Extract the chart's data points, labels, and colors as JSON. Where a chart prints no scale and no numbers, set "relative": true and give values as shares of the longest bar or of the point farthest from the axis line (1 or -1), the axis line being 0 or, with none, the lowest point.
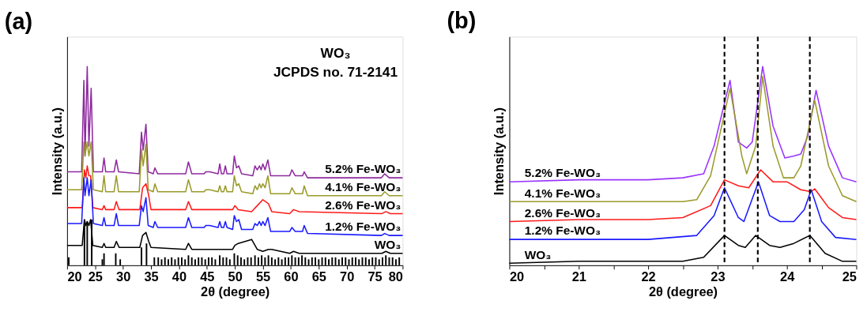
{
  "chart_data": [
    {
      "type": "line",
      "title": "(a)",
      "xlabel": "2θ (degree)",
      "ylabel": "Intensity (a.u.)",
      "relative": true,
      "xlim": [
        20,
        80
      ],
      "xticks": [
        20,
        25,
        30,
        35,
        40,
        45,
        50,
        55,
        60,
        65,
        70,
        75,
        80
      ],
      "tick_labels": "x",
      "grid": false,
      "legend": false,
      "marker": "none",
      "line_style": "solid",
      "annotations": [
        "WO₃",
        "JCPDS no. 71-2141"
      ],
      "series": [
        {
          "name": "5.2% Fe-WO₃",
          "color": "#8e2a9e",
          "x": [
            20,
            22.6,
            23.0,
            23.2,
            23.6,
            23.9,
            24.3,
            24.7,
            26.3,
            26.6,
            26.9,
            28.4,
            28.8,
            29.2,
            32.9,
            33.3,
            33.6,
            34.1,
            34.5,
            35.4,
            35.7,
            36.2,
            41.2,
            41.7,
            42.3,
            44.5,
            44.8,
            45.5,
            47.0,
            47.3,
            47.6,
            48.0,
            48.3,
            48.6,
            49.6,
            49.9,
            50.3,
            50.7,
            51.2,
            53.2,
            53.6,
            54.0,
            54.4,
            54.7,
            55.0,
            55.4,
            55.9,
            56.4,
            59.8,
            60.2,
            60.8,
            62.1,
            62.4,
            63.0,
            76.2,
            76.8,
            77.6,
            80
          ],
          "values": [
            0.47,
            0.47,
            0.93,
            0.55,
            1.0,
            0.6,
            0.89,
            0.47,
            0.47,
            0.54,
            0.47,
            0.47,
            0.53,
            0.47,
            0.46,
            0.67,
            0.58,
            0.71,
            0.47,
            0.46,
            0.49,
            0.46,
            0.46,
            0.52,
            0.46,
            0.46,
            0.47,
            0.47,
            0.46,
            0.51,
            0.46,
            0.46,
            0.5,
            0.46,
            0.46,
            0.55,
            0.49,
            0.5,
            0.46,
            0.45,
            0.5,
            0.48,
            0.5,
            0.48,
            0.51,
            0.48,
            0.53,
            0.45,
            0.45,
            0.48,
            0.45,
            0.45,
            0.47,
            0.44,
            0.44,
            0.46,
            0.44,
            0.44
          ]
        },
        {
          "name": "4.1% Fe-WO₃",
          "color": "#9a9a2a",
          "x": [
            20,
            22.6,
            23.0,
            23.2,
            23.6,
            23.9,
            24.3,
            24.7,
            26.3,
            26.6,
            26.9,
            28.4,
            28.8,
            29.2,
            32.9,
            33.3,
            33.6,
            34.1,
            34.5,
            35.4,
            35.7,
            36.2,
            41.2,
            41.7,
            42.3,
            44.5,
            44.8,
            45.5,
            47.0,
            47.3,
            47.6,
            48.0,
            48.3,
            48.6,
            49.6,
            49.9,
            50.3,
            50.7,
            51.2,
            53.2,
            53.6,
            54.0,
            54.4,
            54.7,
            55.0,
            55.4,
            55.9,
            56.4,
            59.8,
            60.2,
            60.8,
            62.1,
            62.4,
            63.0,
            76.2,
            76.8,
            77.6,
            80
          ],
          "values": [
            0.38,
            0.38,
            0.62,
            0.55,
            0.62,
            0.55,
            0.62,
            0.38,
            0.37,
            0.45,
            0.37,
            0.37,
            0.45,
            0.37,
            0.37,
            0.585,
            0.5,
            0.61,
            0.38,
            0.37,
            0.41,
            0.37,
            0.37,
            0.43,
            0.37,
            0.37,
            0.38,
            0.38,
            0.37,
            0.4,
            0.37,
            0.37,
            0.4,
            0.37,
            0.37,
            0.45,
            0.4,
            0.41,
            0.37,
            0.36,
            0.4,
            0.38,
            0.41,
            0.39,
            0.41,
            0.39,
            0.45,
            0.36,
            0.36,
            0.39,
            0.36,
            0.36,
            0.4,
            0.35,
            0.35,
            0.37,
            0.35,
            0.35
          ]
        },
        {
          "name": "2.6% Fe-WO₃",
          "color": "#ff1a1a",
          "x": [
            20,
            22.7,
            23.1,
            23.35,
            23.6,
            23.9,
            24.2,
            24.6,
            26.3,
            26.6,
            26.9,
            28.4,
            28.8,
            29.3,
            33.0,
            33.5,
            34.1,
            34.6,
            35.0,
            41.2,
            41.7,
            42.3,
            49.6,
            50.0,
            50.6,
            53.0,
            54.0,
            55.0,
            56.0,
            56.6,
            59.8,
            60.5,
            61.5,
            76.3,
            77.0,
            77.8,
            80
          ],
          "values": [
            0.29,
            0.29,
            0.48,
            0.44,
            0.5,
            0.45,
            0.45,
            0.29,
            0.28,
            0.3,
            0.28,
            0.28,
            0.32,
            0.28,
            0.28,
            0.39,
            0.41,
            0.35,
            0.28,
            0.28,
            0.32,
            0.28,
            0.28,
            0.3,
            0.28,
            0.27,
            0.3,
            0.33,
            0.31,
            0.27,
            0.26,
            0.28,
            0.27,
            0.26,
            0.27,
            0.26,
            0.26
          ]
        },
        {
          "name": "1.2% Fe-WO₃",
          "color": "#1a1aff",
          "x": [
            20,
            22.6,
            23.0,
            23.2,
            23.6,
            23.9,
            24.3,
            24.7,
            26.3,
            26.6,
            26.9,
            28.4,
            28.8,
            29.2,
            32.9,
            33.3,
            33.6,
            34.1,
            34.5,
            35.4,
            35.7,
            36.2,
            41.2,
            41.7,
            42.3,
            44.5,
            44.8,
            45.5,
            47.0,
            47.3,
            47.6,
            48.0,
            48.3,
            48.6,
            49.6,
            49.9,
            50.3,
            50.7,
            51.2,
            53.2,
            53.6,
            54.0,
            54.4,
            54.7,
            55.0,
            55.4,
            55.9,
            56.4,
            59.8,
            60.2,
            60.8,
            62.1,
            62.4,
            63.0,
            76.2,
            76.8,
            77.6,
            80
          ],
          "values": [
            0.21,
            0.21,
            0.44,
            0.35,
            0.44,
            0.35,
            0.43,
            0.21,
            0.2,
            0.24,
            0.2,
            0.2,
            0.26,
            0.2,
            0.2,
            0.3,
            0.27,
            0.34,
            0.2,
            0.19,
            0.22,
            0.19,
            0.19,
            0.24,
            0.19,
            0.19,
            0.2,
            0.2,
            0.19,
            0.22,
            0.19,
            0.19,
            0.22,
            0.19,
            0.18,
            0.25,
            0.22,
            0.23,
            0.18,
            0.18,
            0.21,
            0.2,
            0.22,
            0.2,
            0.22,
            0.2,
            0.24,
            0.17,
            0.17,
            0.19,
            0.17,
            0.17,
            0.2,
            0.16,
            0.15,
            0.16,
            0.15,
            0.15
          ]
        },
        {
          "name": "WO₃",
          "color": "#000000",
          "x": [
            20,
            22.7,
            23.1,
            23.35,
            23.6,
            23.9,
            24.2,
            24.6,
            26.3,
            26.6,
            26.9,
            28.4,
            28.8,
            29.3,
            33.0,
            33.5,
            34.1,
            34.6,
            35.0,
            41.2,
            41.7,
            42.3,
            49.6,
            50.0,
            50.6,
            53.0,
            54.0,
            55.0,
            56.0,
            56.6,
            59.8,
            60.5,
            61.5,
            76.3,
            77.0,
            77.8,
            80
          ],
          "values": [
            0.1,
            0.1,
            0.23,
            0.2,
            0.22,
            0.2,
            0.23,
            0.1,
            0.09,
            0.11,
            0.09,
            0.09,
            0.12,
            0.09,
            0.09,
            0.15,
            0.165,
            0.12,
            0.09,
            0.08,
            0.11,
            0.08,
            0.08,
            0.1,
            0.11,
            0.13,
            0.08,
            0.07,
            0.08,
            0.08,
            0.06,
            0.07,
            0.06,
            0.06,
            0.07,
            0.06,
            0.06
          ]
        },
        {
          "type": "bar",
          "color": "#000000",
          "x": [
            20.3,
            23.1,
            23.6,
            24.4,
            26.3,
            26.6,
            28.7,
            29.5,
            33.3,
            34.2,
            35.6,
            36.3,
            36.9,
            37.5,
            38.1,
            38.7,
            39.3,
            39.9,
            40.5,
            41.1,
            41.7,
            42.3,
            42.9,
            43.5,
            44.1,
            44.7,
            45.3,
            45.9,
            46.5,
            47.3,
            47.9,
            48.5,
            49.1,
            49.9,
            50.5,
            51.1,
            51.7,
            52.3,
            52.9,
            53.6,
            54.2,
            54.8,
            55.4,
            56.0,
            56.6,
            57.2,
            57.8,
            58.4,
            59.0,
            59.6,
            60.2,
            60.8,
            61.4,
            62.0,
            62.6,
            63.2,
            63.8,
            64.4,
            65.0,
            65.6,
            66.2,
            66.8,
            67.4,
            68.0,
            68.6,
            69.2,
            69.8,
            70.4,
            71.0,
            71.6,
            72.2,
            72.8,
            73.4,
            74.0,
            74.6,
            75.2,
            75.8,
            76.4,
            77.0,
            77.6,
            78.2,
            78.8,
            79.4
          ],
          "values": [
            0.04,
            0.23,
            0.22,
            0.23,
            0.03,
            0.06,
            0.06,
            0.03,
            0.09,
            0.11,
            0.04,
            0.04,
            0.03,
            0.04,
            0.03,
            0.04,
            0.03,
            0.04,
            0.04,
            0.03,
            0.05,
            0.04,
            0.03,
            0.04,
            0.04,
            0.03,
            0.04,
            0.04,
            0.03,
            0.05,
            0.04,
            0.04,
            0.03,
            0.06,
            0.05,
            0.04,
            0.03,
            0.04,
            0.04,
            0.05,
            0.04,
            0.05,
            0.04,
            0.05,
            0.04,
            0.03,
            0.04,
            0.03,
            0.04,
            0.04,
            0.05,
            0.04,
            0.04,
            0.05,
            0.04,
            0.03,
            0.04,
            0.04,
            0.03,
            0.04,
            0.04,
            0.03,
            0.04,
            0.04,
            0.03,
            0.04,
            0.04,
            0.03,
            0.04,
            0.04,
            0.03,
            0.04,
            0.04,
            0.03,
            0.04,
            0.04,
            0.03,
            0.04,
            0.05,
            0.04,
            0.04,
            0.03,
            0.04
          ]
        }
      ]
    },
    {
      "type": "line",
      "title": "(b)",
      "xlabel": "2θ (degree)",
      "ylabel": "Intensity (a.u.)",
      "relative": true,
      "xlim": [
        20,
        25
      ],
      "xticks": [
        20,
        {
          "value": 20.5,
          "label": null
        },
        21,
        {
          "value": 21.5,
          "label": null
        },
        22,
        {
          "value": 22.5,
          "label": null
        },
        23,
        {
          "value": 23.5,
          "label": null
        },
        24,
        {
          "value": 24.5,
          "label": null
        },
        25
      ],
      "tick_labels": "x",
      "grid": false,
      "legend": false,
      "marker": "none",
      "line_style": "solid",
      "ref_lines": [
        {
          "axis": "x",
          "value": 23.1,
          "color": "#000000",
          "line_style": "dashed"
        },
        {
          "axis": "x",
          "value": 23.58,
          "color": "#000000",
          "line_style": "dashed"
        },
        {
          "axis": "x",
          "value": 24.33,
          "color": "#000000",
          "line_style": "dashed"
        }
      ],
      "series": [
        {
          "name": "5.2% Fe-WO₃",
          "color": "#9933ff",
          "x": [
            20,
            21,
            22,
            22.5,
            22.8,
            22.95,
            23.18,
            23.3,
            23.42,
            23.5,
            23.65,
            23.8,
            23.97,
            24.1,
            24.2,
            24.3,
            24.42,
            24.6,
            24.8,
            25
          ],
          "values": [
            0.42,
            0.43,
            0.43,
            0.44,
            0.46,
            0.6,
            0.93,
            0.62,
            0.59,
            0.62,
            1.0,
            0.7,
            0.54,
            0.55,
            0.56,
            0.65,
            0.88,
            0.6,
            0.44,
            0.42
          ]
        },
        {
          "name": "4.1% Fe-WO₃",
          "color": "#9a9a2a",
          "x": [
            20,
            21,
            22,
            22.5,
            22.7,
            22.9,
            23.18,
            23.35,
            23.42,
            23.55,
            23.65,
            23.8,
            23.95,
            24.1,
            24.2,
            24.4,
            24.6,
            24.8,
            25
          ],
          "values": [
            0.32,
            0.32,
            0.32,
            0.32,
            0.33,
            0.45,
            0.89,
            0.55,
            0.46,
            0.6,
            0.95,
            0.6,
            0.44,
            0.44,
            0.5,
            0.83,
            0.5,
            0.35,
            0.32
          ]
        },
        {
          "name": "2.6% Fe-WO₃",
          "color": "#ff1a1a",
          "x": [
            20,
            21,
            22,
            22.5,
            22.9,
            23.1,
            23.3,
            23.45,
            23.62,
            23.8,
            24.0,
            24.2,
            24.35,
            24.4,
            24.6,
            24.8,
            25
          ],
          "values": [
            0.22,
            0.23,
            0.23,
            0.24,
            0.3,
            0.43,
            0.4,
            0.39,
            0.48,
            0.42,
            0.42,
            0.38,
            0.37,
            0.385,
            0.29,
            0.24,
            0.23
          ]
        },
        {
          "name": "1.2% Fe-WO₃",
          "color": "#1a1aff",
          "x": [
            20,
            21,
            22,
            22.7,
            22.95,
            23.1,
            23.3,
            23.38,
            23.59,
            23.75,
            23.9,
            24.1,
            24.25,
            24.35,
            24.5,
            24.7,
            25
          ],
          "values": [
            0.13,
            0.13,
            0.13,
            0.15,
            0.25,
            0.39,
            0.24,
            0.22,
            0.42,
            0.25,
            0.22,
            0.22,
            0.28,
            0.38,
            0.22,
            0.14,
            0.13
          ]
        },
        {
          "name": "WO₃",
          "color": "#000000",
          "x": [
            20,
            21,
            22,
            22.5,
            22.8,
            23.1,
            23.3,
            23.4,
            23.55,
            23.75,
            23.9,
            24.1,
            24.33,
            24.55,
            24.8,
            25
          ],
          "values": [
            0.01,
            0.02,
            0.02,
            0.02,
            0.04,
            0.15,
            0.1,
            0.09,
            0.15,
            0.1,
            0.09,
            0.11,
            0.15,
            0.06,
            0.02,
            0.02
          ]
        }
      ]
    }
  ]
}
